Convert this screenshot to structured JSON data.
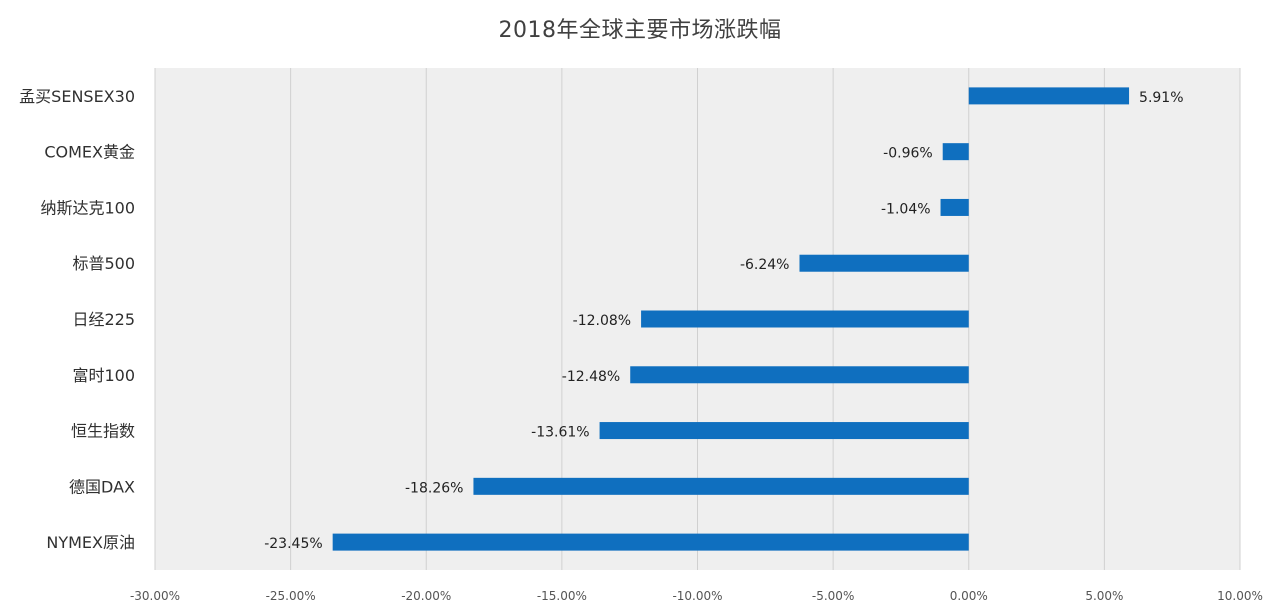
{
  "chart_data": {
    "type": "bar",
    "orientation": "horizontal",
    "title": "2018年全球主要市场涨跌幅",
    "categories": [
      "孟买SENSEX30",
      "COMEX黄金",
      "纳斯达克100",
      "标普500",
      "日经225",
      "富时100",
      "恒生指数",
      "德国DAX",
      "NYMEX原油"
    ],
    "values": [
      5.91,
      -0.96,
      -1.04,
      -6.24,
      -12.08,
      -12.48,
      -13.61,
      -18.26,
      -23.45
    ],
    "data_labels": [
      "5.91%",
      "-0.96%",
      "-1.04%",
      "-6.24%",
      "-12.08%",
      "-12.48%",
      "-13.61%",
      "-18.26%",
      "-23.45%"
    ],
    "xlim": [
      -30,
      10
    ],
    "x_ticks": [
      -30,
      -25,
      -20,
      -15,
      -10,
      -5,
      0,
      5,
      10
    ],
    "x_tick_labels": [
      "-30.00%",
      "-25.00%",
      "-20.00%",
      "-15.00%",
      "-10.00%",
      "-5.00%",
      "0.00%",
      "5.00%",
      "10.00%"
    ],
    "xlabel": "",
    "ylabel": "",
    "grid": true,
    "legend": "none",
    "bar_color": "#0f6fbf",
    "plot_background": "#efefef"
  }
}
